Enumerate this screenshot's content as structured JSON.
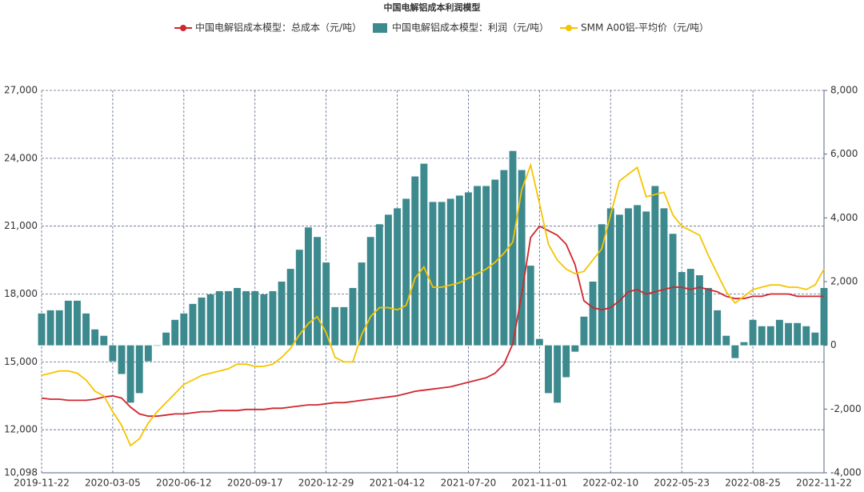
{
  "chart_data": {
    "type": "combo",
    "title": "中国电解铝成本利润模型",
    "categories": [
      "2019-11-22",
      null,
      null,
      null,
      null,
      null,
      null,
      null,
      "2020-03-05",
      null,
      null,
      null,
      null,
      null,
      null,
      null,
      "2020-06-12",
      null,
      null,
      null,
      null,
      null,
      null,
      null,
      "2020-09-17",
      null,
      null,
      null,
      null,
      null,
      null,
      null,
      "2020-12-29",
      null,
      null,
      null,
      null,
      null,
      null,
      null,
      "2021-04-12",
      null,
      null,
      null,
      null,
      null,
      null,
      null,
      "2021-07-20",
      null,
      null,
      null,
      null,
      null,
      null,
      null,
      "2021-11-01",
      null,
      null,
      null,
      null,
      null,
      null,
      null,
      "2022-02-10",
      null,
      null,
      null,
      null,
      null,
      null,
      null,
      "2022-05-23",
      null,
      null,
      null,
      null,
      null,
      null,
      null,
      "2022-08-25",
      null,
      null,
      null,
      null,
      null,
      null,
      null,
      "2022-11-22"
    ],
    "series": [
      {
        "name": "中国电解铝成本模型：总成本（元/吨）",
        "type": "line",
        "color": "#d0262e",
        "axis": "y",
        "values": [
          13400,
          13350,
          13350,
          13300,
          13300,
          13300,
          13350,
          13450,
          13500,
          13400,
          13000,
          12700,
          12600,
          12600,
          12650,
          12700,
          12700,
          12750,
          12800,
          12800,
          12850,
          12850,
          12850,
          12900,
          12900,
          12900,
          12950,
          12950,
          13000,
          13050,
          13100,
          13100,
          13150,
          13200,
          13200,
          13250,
          13300,
          13350,
          13400,
          13450,
          13500,
          13600,
          13700,
          13750,
          13800,
          13850,
          13900,
          14000,
          14100,
          14200,
          14300,
          14500,
          14900,
          15800,
          18000,
          20500,
          21000,
          20800,
          20600,
          20200,
          19300,
          17700,
          17400,
          17300,
          17400,
          17700,
          18100,
          18200,
          18000,
          18100,
          18200,
          18300,
          18300,
          18200,
          18300,
          18200,
          18100,
          17900,
          17800,
          17800,
          17900,
          17900,
          18000,
          18000,
          18000,
          17900,
          17900,
          17900,
          17900
        ]
      },
      {
        "name": "中国电解铝成本模型：利润（元/吨）",
        "type": "bar",
        "color": "#3d8a8e",
        "axis": "y2",
        "values": [
          1000,
          1100,
          1100,
          1400,
          1400,
          1000,
          500,
          300,
          -500,
          -900,
          -1800,
          -1500,
          -500,
          0,
          400,
          800,
          1000,
          1300,
          1500,
          1600,
          1700,
          1700,
          1800,
          1700,
          1700,
          1600,
          1700,
          2000,
          2400,
          3000,
          3700,
          3400,
          2600,
          1200,
          1200,
          1800,
          2600,
          3400,
          3800,
          4100,
          4300,
          4600,
          5300,
          5700,
          4500,
          4500,
          4600,
          4700,
          4800,
          5000,
          5000,
          5200,
          5500,
          6100,
          5500,
          2500,
          200,
          -1500,
          -1800,
          -1000,
          -200,
          900,
          2000,
          3800,
          4300,
          4100,
          4300,
          4400,
          4200,
          5000,
          4300,
          3500,
          2300,
          2400,
          2200,
          1800,
          1100,
          300,
          -400,
          100,
          800,
          600,
          600,
          800,
          700,
          700,
          600,
          400,
          1800
        ]
      },
      {
        "name": "SMM A00铝-平均价（元/吨）",
        "type": "line",
        "color": "#f5c400",
        "axis": "y",
        "values": [
          14400,
          14500,
          14600,
          14600,
          14500,
          14200,
          13700,
          13500,
          12800,
          12200,
          11300,
          11600,
          12300,
          12800,
          13200,
          13600,
          14000,
          14200,
          14400,
          14500,
          14600,
          14700,
          14900,
          14900,
          14800,
          14800,
          14900,
          15200,
          15600,
          16200,
          16700,
          17000,
          16300,
          15200,
          15000,
          15000,
          16200,
          17000,
          17400,
          17400,
          17300,
          17500,
          18700,
          19200,
          18300,
          18300,
          18400,
          18500,
          18700,
          18900,
          19100,
          19400,
          19800,
          20300,
          22600,
          23700,
          22000,
          20200,
          19500,
          19100,
          18900,
          19000,
          19500,
          20000,
          21500,
          23000,
          23300,
          23600,
          22300,
          22400,
          22500,
          21500,
          21000,
          20800,
          20600,
          19700,
          18900,
          18100,
          17600,
          17900,
          18200,
          18300,
          18400,
          18400,
          18300,
          18300,
          18200,
          18400,
          19100
        ]
      }
    ],
    "ylim": [
      10098,
      27000
    ],
    "yticks": [
      {
        "value": 10098,
        "label": "10,098"
      },
      {
        "value": 12000,
        "label": "12,000"
      },
      {
        "value": 15000,
        "label": "15,000"
      },
      {
        "value": 18000,
        "label": "18,000"
      },
      {
        "value": 21000,
        "label": "21,000"
      },
      {
        "value": 24000,
        "label": "24,000"
      },
      {
        "value": 27000,
        "label": "27,000"
      }
    ],
    "y2lim": [
      -4000,
      8000
    ],
    "y2ticks": [
      {
        "value": -4000,
        "label": "-4,000"
      },
      {
        "value": -2000,
        "label": "-2,000"
      },
      0,
      {
        "value": 2000,
        "label": "2,000"
      },
      {
        "value": 4000,
        "label": "4,000"
      },
      {
        "value": 6000,
        "label": "6,000"
      },
      {
        "value": 8000,
        "label": "8,000"
      }
    ],
    "grid": true,
    "legend": "top"
  }
}
